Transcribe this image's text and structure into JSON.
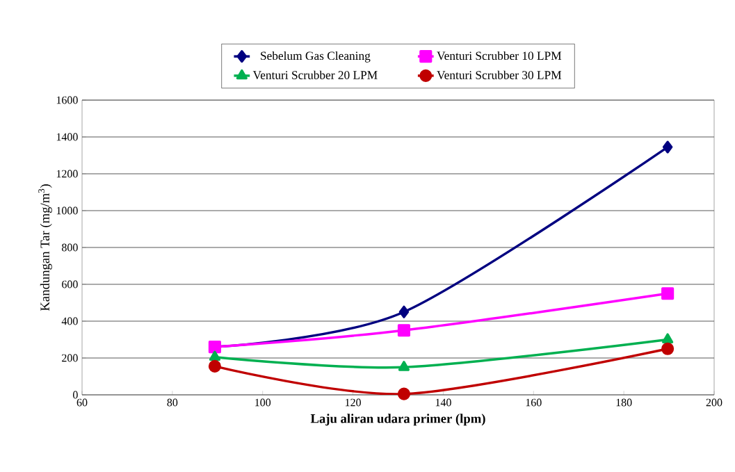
{
  "chart_data": {
    "type": "line",
    "xlabel": "Laju aliran udara primer (lpm)",
    "ylabel": "Kandungan Tar (mg/m$^{3}$)",
    "x": [
      89.4,
      131.3,
      189.7
    ],
    "series": [
      {
        "name": "Sebelum Gas Cleaning",
        "color": "#000080",
        "marker": "diamond",
        "values": [
          260,
          450,
          1345
        ]
      },
      {
        "name": "Venturi Scrubber 10 LPM",
        "color": "#ff00ff",
        "marker": "square",
        "values": [
          260,
          350,
          550
        ]
      },
      {
        "name": "Venturi Scrubber 20 LPM",
        "color": "#00b050",
        "marker": "triangle",
        "values": [
          205,
          150,
          300
        ]
      },
      {
        "name": "Venturi Scrubber 30 LPM",
        "color": "#c00000",
        "marker": "circle",
        "values": [
          155,
          5,
          250
        ]
      }
    ],
    "xlim": [
      60,
      200
    ],
    "xticks": [
      60,
      80,
      100,
      120,
      140,
      160,
      180,
      200
    ],
    "ylim": [
      0,
      1600
    ],
    "yticks": [
      0,
      200,
      400,
      600,
      800,
      1000,
      1200,
      1400,
      1600
    ],
    "grid": "y",
    "legend": "top",
    "line_style": "solid"
  }
}
